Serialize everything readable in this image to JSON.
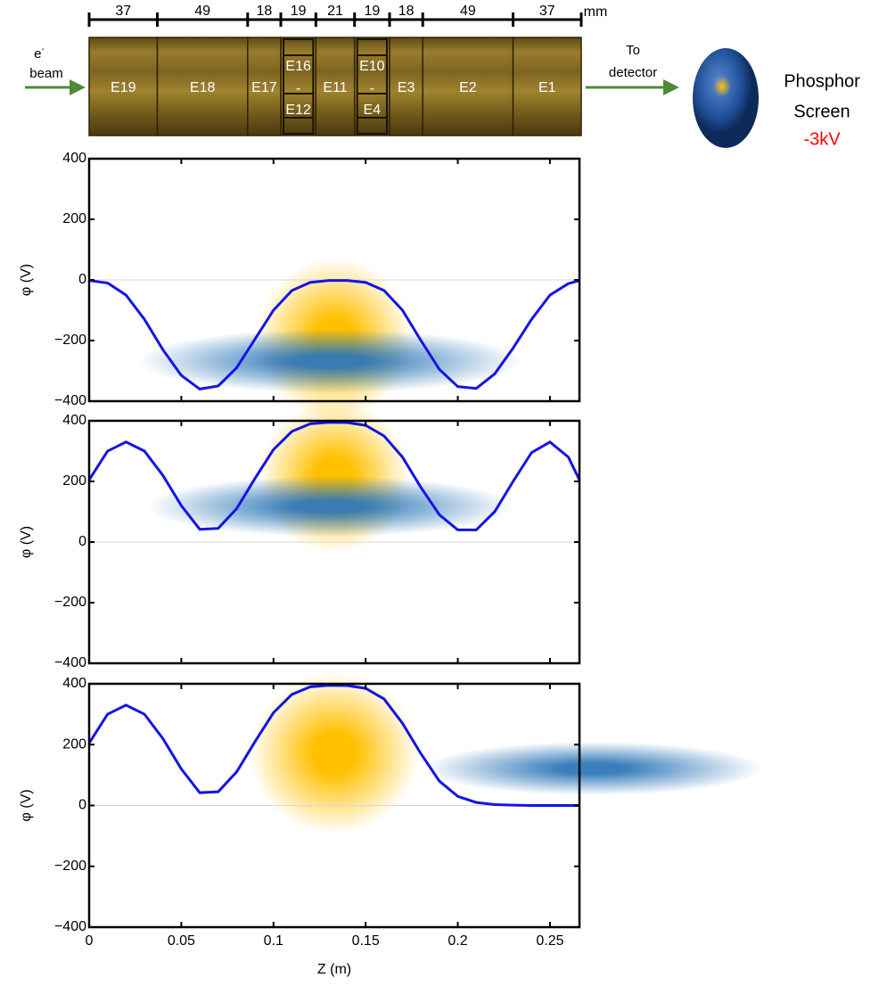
{
  "diagram": {
    "dimensions": [
      37,
      49,
      18,
      19,
      21,
      19,
      18,
      49,
      37
    ],
    "unit": "mm",
    "electrodes": [
      [
        "E19"
      ],
      [
        "E18"
      ],
      [
        "E17"
      ],
      [
        "E16",
        "-",
        "E12"
      ],
      [
        "E11"
      ],
      [
        "E10",
        "-",
        "E4"
      ],
      [
        "E3"
      ],
      [
        "E2"
      ],
      [
        "E1"
      ]
    ],
    "electron": "e",
    "electron_sup": "-",
    "beam": "beam",
    "to": "To",
    "detector": "detector",
    "screen_lines": [
      "Phosphor",
      "Screen"
    ],
    "voltage": "-3kV"
  },
  "chart_data": [
    {
      "type": "line",
      "ylabel": "φ (V)",
      "color": "#1414e6",
      "zero_line": true,
      "x": [
        0,
        0.01,
        0.02,
        0.03,
        0.04,
        0.05,
        0.06,
        0.07,
        0.08,
        0.09,
        0.1,
        0.11,
        0.12,
        0.13,
        0.14,
        0.15,
        0.16,
        0.17,
        0.18,
        0.19,
        0.2,
        0.21,
        0.22,
        0.23,
        0.24,
        0.25,
        0.26,
        0.266
      ],
      "values": [
        -2,
        -10,
        -50,
        -130,
        -230,
        -315,
        -360,
        -350,
        -290,
        -195,
        -100,
        -35,
        -8,
        -2,
        -2,
        -8,
        -35,
        -100,
        -200,
        -295,
        -352,
        -358,
        -310,
        -225,
        -130,
        -50,
        -12,
        -2
      ],
      "xlim": [
        0,
        0.266
      ],
      "ylim": [
        -400,
        400
      ],
      "yticks": [
        {
          "value": -400,
          "label": "−400"
        },
        {
          "value": -200,
          "label": "−200"
        },
        0,
        200,
        400
      ]
    },
    {
      "type": "line",
      "ylabel": "φ (V)",
      "color": "#1414e6",
      "zero_line": true,
      "x": [
        0,
        0.01,
        0.02,
        0.03,
        0.04,
        0.05,
        0.06,
        0.07,
        0.08,
        0.09,
        0.1,
        0.11,
        0.12,
        0.13,
        0.14,
        0.15,
        0.16,
        0.17,
        0.18,
        0.19,
        0.2,
        0.21,
        0.22,
        0.23,
        0.24,
        0.25,
        0.26,
        0.266
      ],
      "values": [
        205,
        300,
        330,
        300,
        220,
        120,
        42,
        45,
        110,
        210,
        305,
        365,
        390,
        395,
        394,
        385,
        350,
        280,
        180,
        90,
        40,
        40,
        100,
        200,
        295,
        330,
        280,
        205
      ],
      "xlim": [
        0,
        0.266
      ],
      "ylim": [
        -400,
        400
      ],
      "yticks": [
        {
          "value": -400,
          "label": "−400"
        },
        {
          "value": -200,
          "label": "−200"
        },
        0,
        200,
        400
      ]
    },
    {
      "type": "line",
      "ylabel": "φ (V)",
      "xlabel": "Z (m)",
      "color": "#1414e6",
      "zero_line": true,
      "x": [
        0,
        0.01,
        0.02,
        0.03,
        0.04,
        0.05,
        0.06,
        0.07,
        0.08,
        0.09,
        0.1,
        0.11,
        0.12,
        0.13,
        0.14,
        0.15,
        0.16,
        0.17,
        0.18,
        0.19,
        0.2,
        0.21,
        0.22,
        0.23,
        0.24,
        0.25,
        0.26,
        0.266
      ],
      "values": [
        205,
        300,
        330,
        300,
        220,
        120,
        42,
        45,
        110,
        210,
        305,
        365,
        390,
        395,
        394,
        385,
        350,
        270,
        170,
        80,
        30,
        10,
        3,
        1,
        0,
        0,
        0,
        0
      ],
      "xlim": [
        0,
        0.266
      ],
      "ylim": [
        -400,
        400
      ],
      "xticks": [
        0,
        0.05,
        0.1,
        0.15,
        0.2,
        0.25
      ],
      "yticks": [
        {
          "value": -400,
          "label": "−400"
        },
        {
          "value": -200,
          "label": "−200"
        },
        0,
        200,
        400
      ]
    }
  ]
}
